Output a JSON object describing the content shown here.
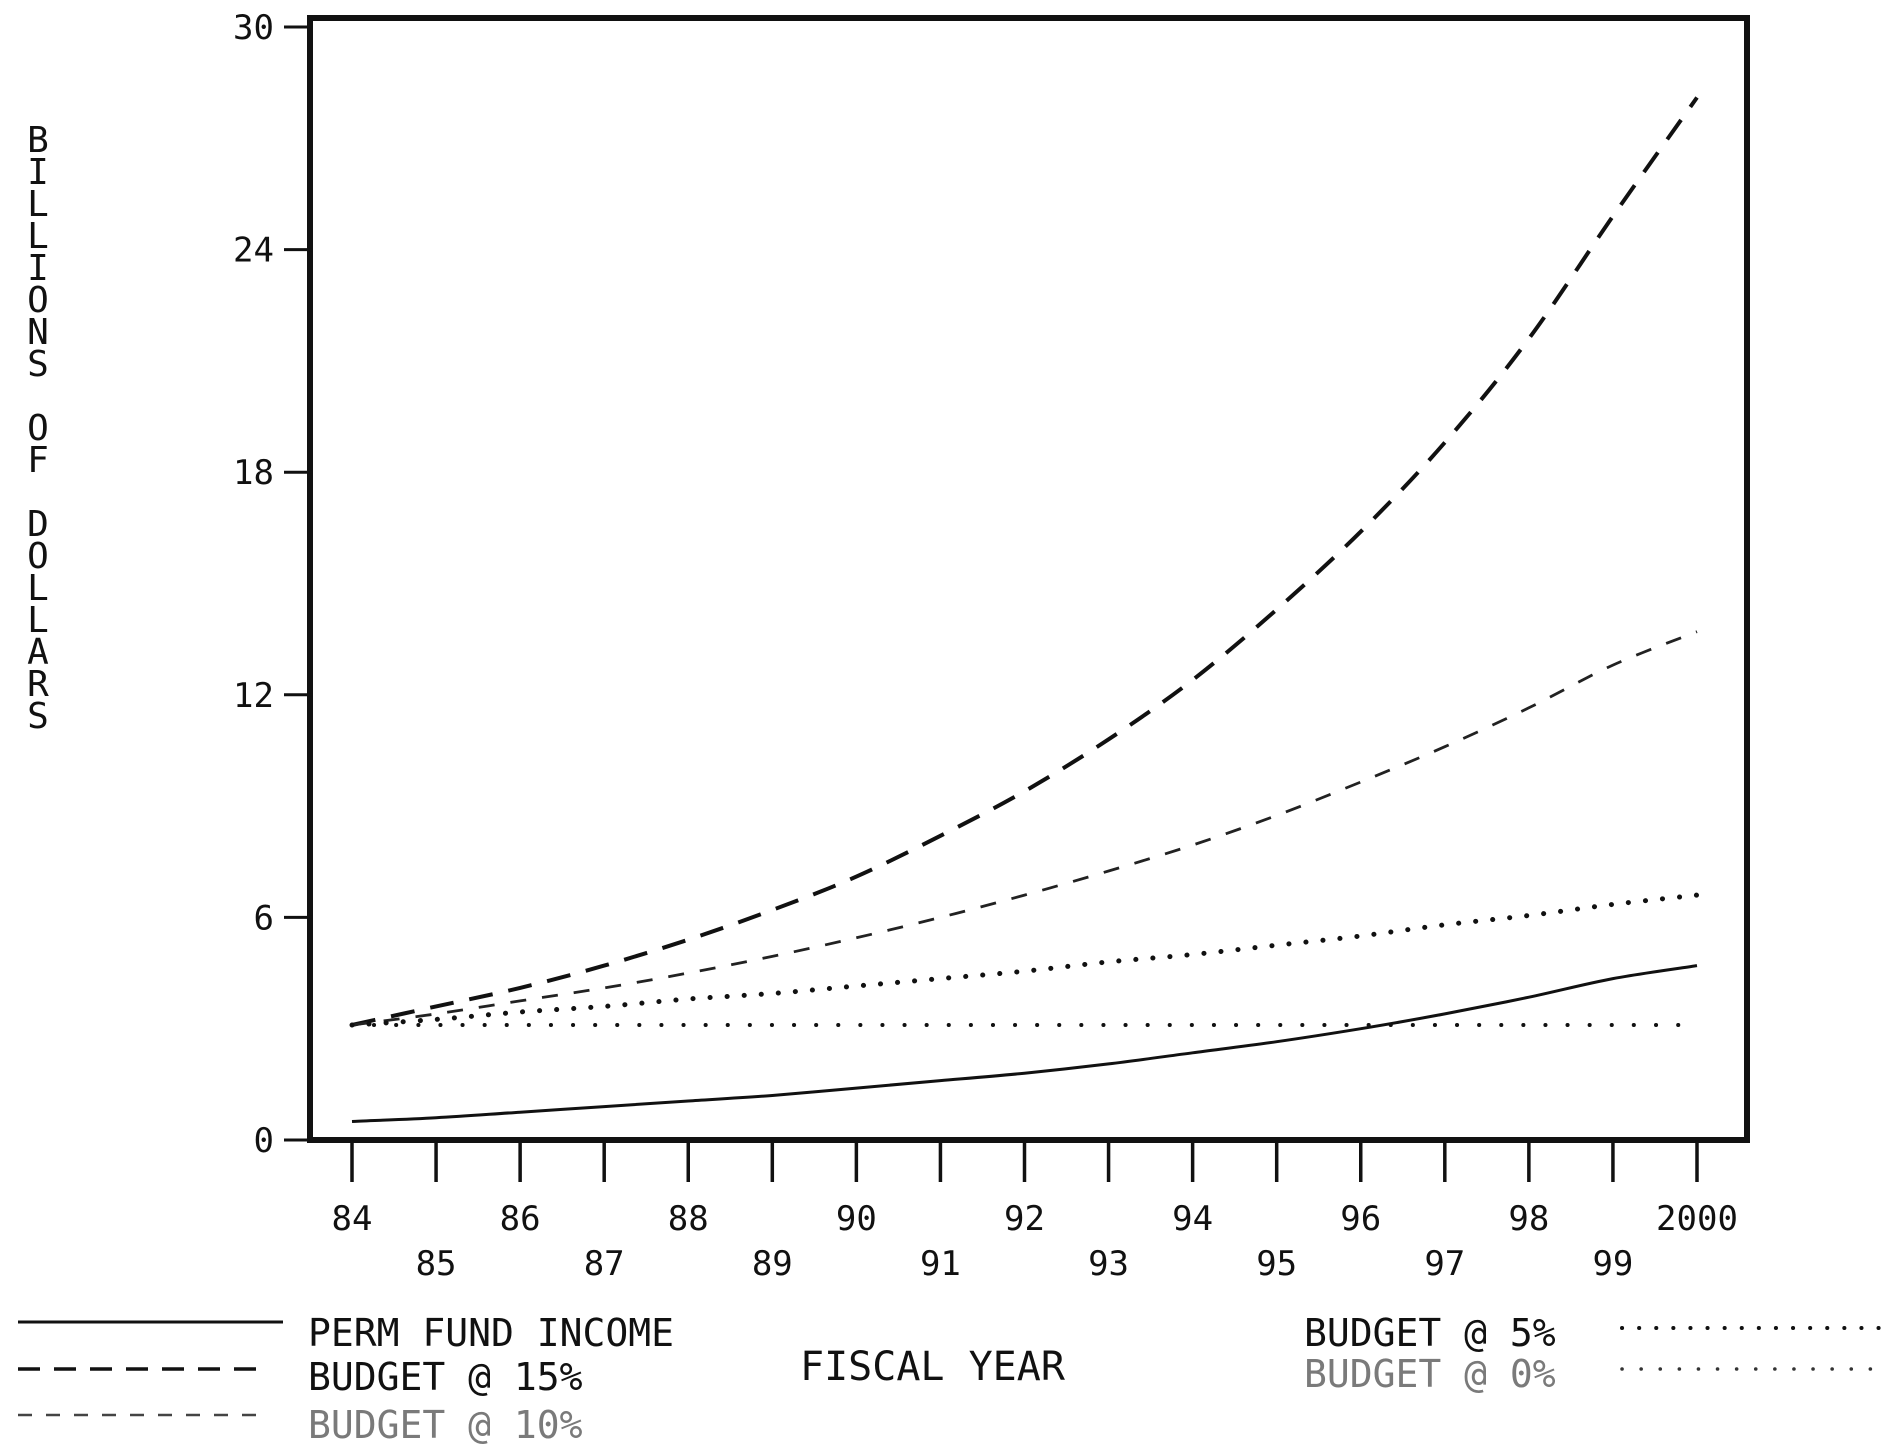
{
  "chart_data": {
    "type": "line",
    "ylabel": "BILLIONS OF DOLLARS",
    "xlabel": "FISCAL YEAR",
    "ylim": [
      0,
      30
    ],
    "yticks": [
      "0",
      "6",
      "12",
      "18",
      "24",
      "30"
    ],
    "yticks_values": [
      0,
      6,
      12,
      18,
      24,
      30
    ],
    "xlim": [
      1984,
      2000
    ],
    "xticks_upper": [
      "84",
      "86",
      "88",
      "90",
      "92",
      "94",
      "96",
      "98",
      "2000"
    ],
    "xticks_upper_values": [
      1984,
      1986,
      1988,
      1990,
      1992,
      1994,
      1996,
      1998,
      2000
    ],
    "xticks_lower": [
      "85",
      "87",
      "89",
      "91",
      "93",
      "95",
      "97",
      "99"
    ],
    "xticks_lower_values": [
      1985,
      1987,
      1989,
      1991,
      1993,
      1995,
      1997,
      1999
    ],
    "grid": false,
    "legend_placement": "bottom",
    "x": [
      1984,
      1985,
      1986,
      1987,
      1988,
      1989,
      1990,
      1991,
      1992,
      1993,
      1994,
      1995,
      1996,
      1997,
      1998,
      1999,
      2000
    ],
    "series": [
      {
        "name": "PERM FUND INCOME",
        "style": "solid",
        "values": [
          0.5,
          0.6,
          0.75,
          0.9,
          1.05,
          1.2,
          1.4,
          1.6,
          1.8,
          2.05,
          2.35,
          2.65,
          3.0,
          3.4,
          3.85,
          4.35,
          4.7
        ]
      },
      {
        "name": "BUDGET @ 15%",
        "style": "long-dash",
        "values": [
          3.1,
          3.6,
          4.1,
          4.7,
          5.4,
          6.2,
          7.1,
          8.2,
          9.4,
          10.8,
          12.4,
          14.3,
          16.4,
          18.8,
          21.6,
          24.9,
          28.1
        ]
      },
      {
        "name": "BUDGET @ 10%",
        "style": "short-dash",
        "values": [
          3.1,
          3.4,
          3.75,
          4.1,
          4.5,
          4.95,
          5.45,
          6.0,
          6.6,
          7.25,
          7.95,
          8.75,
          9.65,
          10.6,
          11.65,
          12.8,
          13.7
        ]
      },
      {
        "name": "BUDGET @ 5%",
        "style": "dotted-dense",
        "values": [
          3.1,
          3.25,
          3.45,
          3.6,
          3.8,
          3.95,
          4.15,
          4.35,
          4.55,
          4.8,
          5.0,
          5.25,
          5.5,
          5.8,
          6.05,
          6.35,
          6.6
        ]
      },
      {
        "name": "BUDGET @ 0%",
        "style": "dotted-sparse",
        "values": [
          3.1,
          3.1,
          3.1,
          3.1,
          3.1,
          3.1,
          3.1,
          3.1,
          3.1,
          3.1,
          3.1,
          3.1,
          3.1,
          3.1,
          3.1,
          3.1,
          3.1
        ]
      }
    ]
  }
}
